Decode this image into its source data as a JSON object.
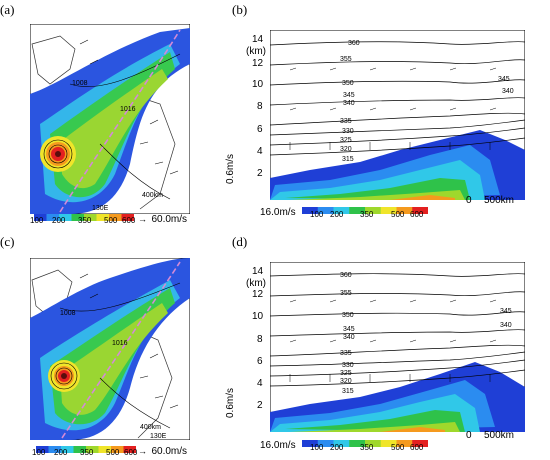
{
  "panels": {
    "a": {
      "label": "(a)",
      "scale_text": "400km",
      "wind_ref": "60.0m/s",
      "lon_label": "130E",
      "isobars": [
        "1008",
        "1016"
      ],
      "colorbar_ticks": [
        "100",
        "200",
        "350",
        "500",
        "600"
      ]
    },
    "b": {
      "label": "(b)",
      "y_ticks": [
        "14",
        "(km)",
        "12",
        "10",
        "8",
        "6",
        "4",
        "2"
      ],
      "wind_ref_vertical": "0.6m/s",
      "wind_ref_horizontal": "16.0m/s",
      "dist_zero": "0",
      "dist_scale": "500km",
      "theta_labels": [
        "360",
        "355",
        "350",
        "345",
        "340",
        "335",
        "330",
        "325",
        "320",
        "315",
        "340",
        "345"
      ],
      "colorbar_ticks": [
        "100",
        "200",
        "350",
        "500",
        "600"
      ]
    },
    "c": {
      "label": "(c)",
      "scale_text": "400km",
      "wind_ref": "60.0m/s",
      "lon_label": "130E",
      "isobars": [
        "1008",
        "1016"
      ],
      "colorbar_ticks": [
        "100",
        "200",
        "350",
        "500",
        "600"
      ]
    },
    "d": {
      "label": "(d)",
      "y_ticks": [
        "14",
        "(km)",
        "12",
        "10",
        "8",
        "6",
        "4",
        "2"
      ],
      "wind_ref_vertical": "0.6m/s",
      "wind_ref_horizontal": "16.0m/s",
      "dist_zero": "0",
      "dist_scale": "500km",
      "theta_labels": [
        "360",
        "355",
        "350",
        "345",
        "340",
        "335",
        "330",
        "325",
        "320",
        "315",
        "345",
        "340"
      ],
      "colorbar_ticks": [
        "100",
        "200",
        "350",
        "500",
        "600"
      ]
    }
  },
  "colors": {
    "bar": [
      "#1f3fd6",
      "#2b8cf0",
      "#30c8e8",
      "#2fc24a",
      "#9fd82c",
      "#f0e52a",
      "#f59a1e",
      "#e32020"
    ],
    "track": "#d48ad6"
  }
}
